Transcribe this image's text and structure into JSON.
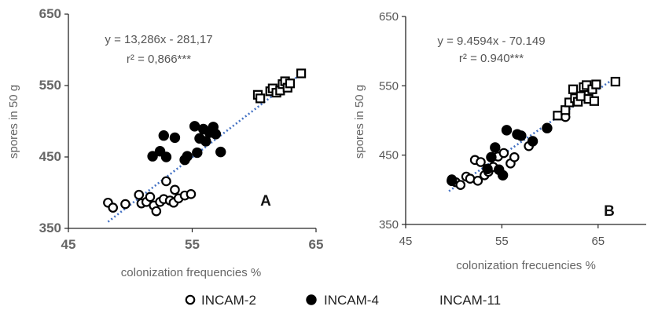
{
  "chart_data": [
    {
      "type": "scatter",
      "panel": "A",
      "title": "",
      "xlabel": "colonization frequencies  %",
      "ylabel": "spores in 50 g",
      "xlim": [
        45,
        65
      ],
      "ylim": [
        350,
        650
      ],
      "xticks": [
        "45",
        "55",
        "65"
      ],
      "yticks": [
        "350",
        "450",
        "550",
        "650"
      ],
      "annotation": {
        "equation": "y = 13,286x - 281,17",
        "r2": "r² = 0,866***",
        "panel_letter": "A"
      },
      "trendline": {
        "slope": 13.286,
        "intercept": -281.17,
        "x_range": [
          48.2,
          63.8
        ]
      },
      "series": [
        {
          "name": "INCAM-2",
          "marker": "open-circle",
          "points": [
            [
              48.2,
              386
            ],
            [
              48.6,
              379
            ],
            [
              49.6,
              384
            ],
            [
              50.7,
              397
            ],
            [
              50.9,
              385
            ],
            [
              51.3,
              387
            ],
            [
              51.6,
              394
            ],
            [
              51.9,
              382
            ],
            [
              52.1,
              374
            ],
            [
              52.4,
              387
            ],
            [
              52.7,
              391
            ],
            [
              52.9,
              416
            ],
            [
              53.2,
              389
            ],
            [
              53.5,
              386
            ],
            [
              53.6,
              404
            ],
            [
              53.9,
              392
            ],
            [
              54.4,
              396
            ],
            [
              54.9,
              398
            ]
          ]
        },
        {
          "name": "INCAM-4",
          "marker": "filled-circle",
          "points": [
            [
              51.8,
              451
            ],
            [
              52.4,
              458
            ],
            [
              52.7,
              480
            ],
            [
              52.9,
              450
            ],
            [
              53.6,
              477
            ],
            [
              54.4,
              446
            ],
            [
              54.6,
              451
            ],
            [
              55.2,
              493
            ],
            [
              55.4,
              456
            ],
            [
              55.6,
              476
            ],
            [
              55.9,
              489
            ],
            [
              56.1,
              472
            ],
            [
              56.4,
              484
            ],
            [
              56.7,
              492
            ],
            [
              56.9,
              482
            ],
            [
              57.3,
              457
            ]
          ]
        },
        {
          "name": "INCAM-11",
          "marker": "open-square",
          "points": [
            [
              60.3,
              537
            ],
            [
              60.5,
              532
            ],
            [
              61.3,
              542
            ],
            [
              61.5,
              546
            ],
            [
              61.8,
              540
            ],
            [
              62.1,
              543
            ],
            [
              62.3,
              552
            ],
            [
              62.5,
              556
            ],
            [
              62.7,
              547
            ],
            [
              62.9,
              553
            ],
            [
              63.8,
              567
            ]
          ]
        }
      ]
    },
    {
      "type": "scatter",
      "panel": "B",
      "title": "",
      "xlabel": "colonization frecuencies %",
      "ylabel": "spores in 50 g",
      "xlim": [
        45,
        70
      ],
      "ylim": [
        350,
        650
      ],
      "xticks": [
        "45",
        "55",
        "65"
      ],
      "yticks": [
        "350",
        "450",
        "550",
        "650"
      ],
      "annotation": {
        "equation": "y = 9.4594x - 70.149",
        "r2": "r² = 0.940***",
        "panel_letter": "B"
      },
      "trendline": {
        "slope": 9.4594,
        "intercept": -70.149,
        "x_range": [
          49.5,
          66.8
        ]
      },
      "series": [
        {
          "name": "INCAM-2",
          "marker": "open-circle",
          "points": [
            [
              49.8,
              415
            ],
            [
              50.2,
              411
            ],
            [
              50.7,
              407
            ],
            [
              51.3,
              419
            ],
            [
              51.7,
              416
            ],
            [
              52.2,
              443
            ],
            [
              52.5,
              413
            ],
            [
              52.8,
              440
            ],
            [
              53.2,
              421
            ],
            [
              53.6,
              426
            ],
            [
              54.1,
              433
            ],
            [
              54.6,
              448
            ],
            [
              55.2,
              453
            ],
            [
              55.9,
              438
            ],
            [
              56.3,
              447
            ],
            [
              57.8,
              463
            ],
            [
              61.6,
              505
            ]
          ]
        },
        {
          "name": "INCAM-4",
          "marker": "filled-circle",
          "points": [
            [
              49.8,
              413
            ],
            [
              53.5,
              430
            ],
            [
              53.9,
              447
            ],
            [
              54.3,
              461
            ],
            [
              54.7,
              429
            ],
            [
              55.1,
              421
            ],
            [
              55.5,
              486
            ],
            [
              56.6,
              480
            ],
            [
              57.0,
              478
            ],
            [
              58.2,
              470
            ],
            [
              59.7,
              489
            ]
          ]
        },
        {
          "name": "INCAM-11",
          "marker": "open-square",
          "points": [
            [
              60.8,
              507
            ],
            [
              61.6,
              515
            ],
            [
              62.0,
              526
            ],
            [
              62.4,
              545
            ],
            [
              62.6,
              532
            ],
            [
              62.9,
              527
            ],
            [
              63.2,
              535
            ],
            [
              63.5,
              548
            ],
            [
              63.8,
              551
            ],
            [
              64.0,
              531
            ],
            [
              64.4,
              545
            ],
            [
              64.6,
              528
            ],
            [
              64.8,
              552
            ],
            [
              66.8,
              556
            ]
          ]
        }
      ]
    }
  ],
  "legend": {
    "items": [
      {
        "label": "INCAM-2",
        "marker": "open-circle"
      },
      {
        "label": "INCAM-4",
        "marker": "filled-circle"
      },
      {
        "label": "INCAM-11",
        "marker": "none"
      }
    ]
  },
  "colors": {
    "marker": "#000000",
    "trendline": "#4472c4",
    "axis": "#262626",
    "label": "#666666"
  }
}
